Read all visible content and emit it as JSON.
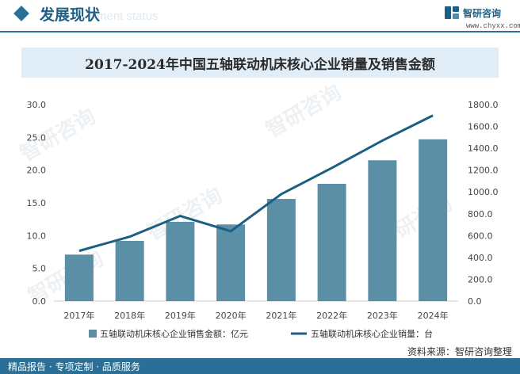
{
  "header": {
    "title": "发展现状",
    "ghost_subtitle": "ment status",
    "logo_name": "智研咨询",
    "logo_url": "www.chyxx.com"
  },
  "chart_data": {
    "type": "bar",
    "title": "2017-2024年中国五轴联动机床核心企业销量及销售金额",
    "categories": [
      "2017年",
      "2018年",
      "2019年",
      "2020年",
      "2021年",
      "2022年",
      "2023年",
      "2024年"
    ],
    "series": [
      {
        "name": "五轴联动机床核心企业销售金额：亿元",
        "type": "bar",
        "axis": "left",
        "color": "#5b8fa6",
        "values": [
          7.1,
          9.2,
          12.1,
          11.7,
          15.6,
          17.9,
          21.5,
          24.7
        ]
      },
      {
        "name": "五轴联动机床核心企业销量：台",
        "type": "line",
        "axis": "right",
        "color": "#1c5f83",
        "values": [
          460,
          590,
          780,
          640,
          980,
          1220,
          1470,
          1700
        ]
      }
    ],
    "ylim_left": [
      0,
      30
    ],
    "yticks_left": [
      "0.0",
      "5.0",
      "10.0",
      "15.0",
      "20.0",
      "25.0",
      "30.0"
    ],
    "ylim_right": [
      0,
      1800
    ],
    "yticks_right": [
      "0.0",
      "200.0",
      "400.0",
      "600.0",
      "800.0",
      "1000.0",
      "1200.0",
      "1400.0",
      "1600.0",
      "1800.0"
    ],
    "grid": false,
    "legend_position": "bottom"
  },
  "footer": {
    "left_text": "精品报告 · 专项定制 · 品质服务",
    "source_text": "资料来源：智研咨询整理"
  },
  "watermark_text": "智研咨询"
}
